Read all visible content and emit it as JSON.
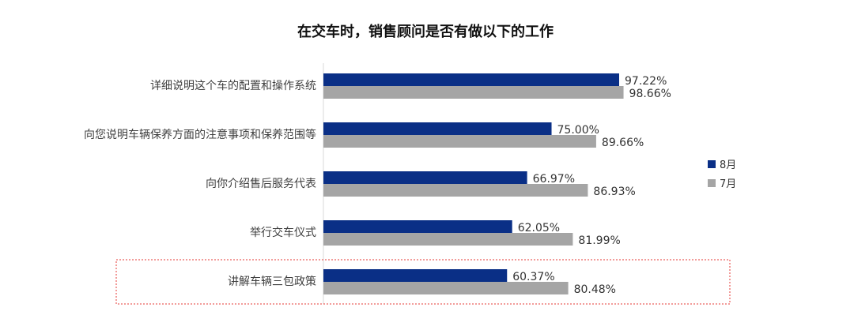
{
  "chart_data": {
    "type": "bar",
    "orientation": "horizontal",
    "title": "在交车时，销售顾问是否有做以下的工作",
    "categories": [
      "详细说明这个车的配置和操作系统",
      "向您说明车辆保养方面的注意事项和保养范围等",
      "向你介绍售后服务代表",
      "举行交车仪式",
      "讲解车辆三包政策"
    ],
    "series": [
      {
        "name": "8月",
        "color": "#0a2f86",
        "values": [
          97.22,
          75.0,
          66.97,
          62.05,
          60.37
        ],
        "labels": [
          "97.22%",
          "75.00%",
          "66.97%",
          "62.05%",
          "60.37%"
        ]
      },
      {
        "name": "7月",
        "color": "#a5a5a5",
        "values": [
          98.66,
          89.66,
          86.93,
          81.99,
          80.48
        ],
        "labels": [
          "98.66%",
          "89.66%",
          "86.93%",
          "81.99%",
          "80.48%"
        ]
      }
    ],
    "xlim": [
      0,
      100
    ],
    "value_unit": "%",
    "grid": false,
    "legend": "right",
    "highlight": {
      "category_index": 4,
      "style": "dashed-red-box",
      "color": "#e53935"
    }
  }
}
